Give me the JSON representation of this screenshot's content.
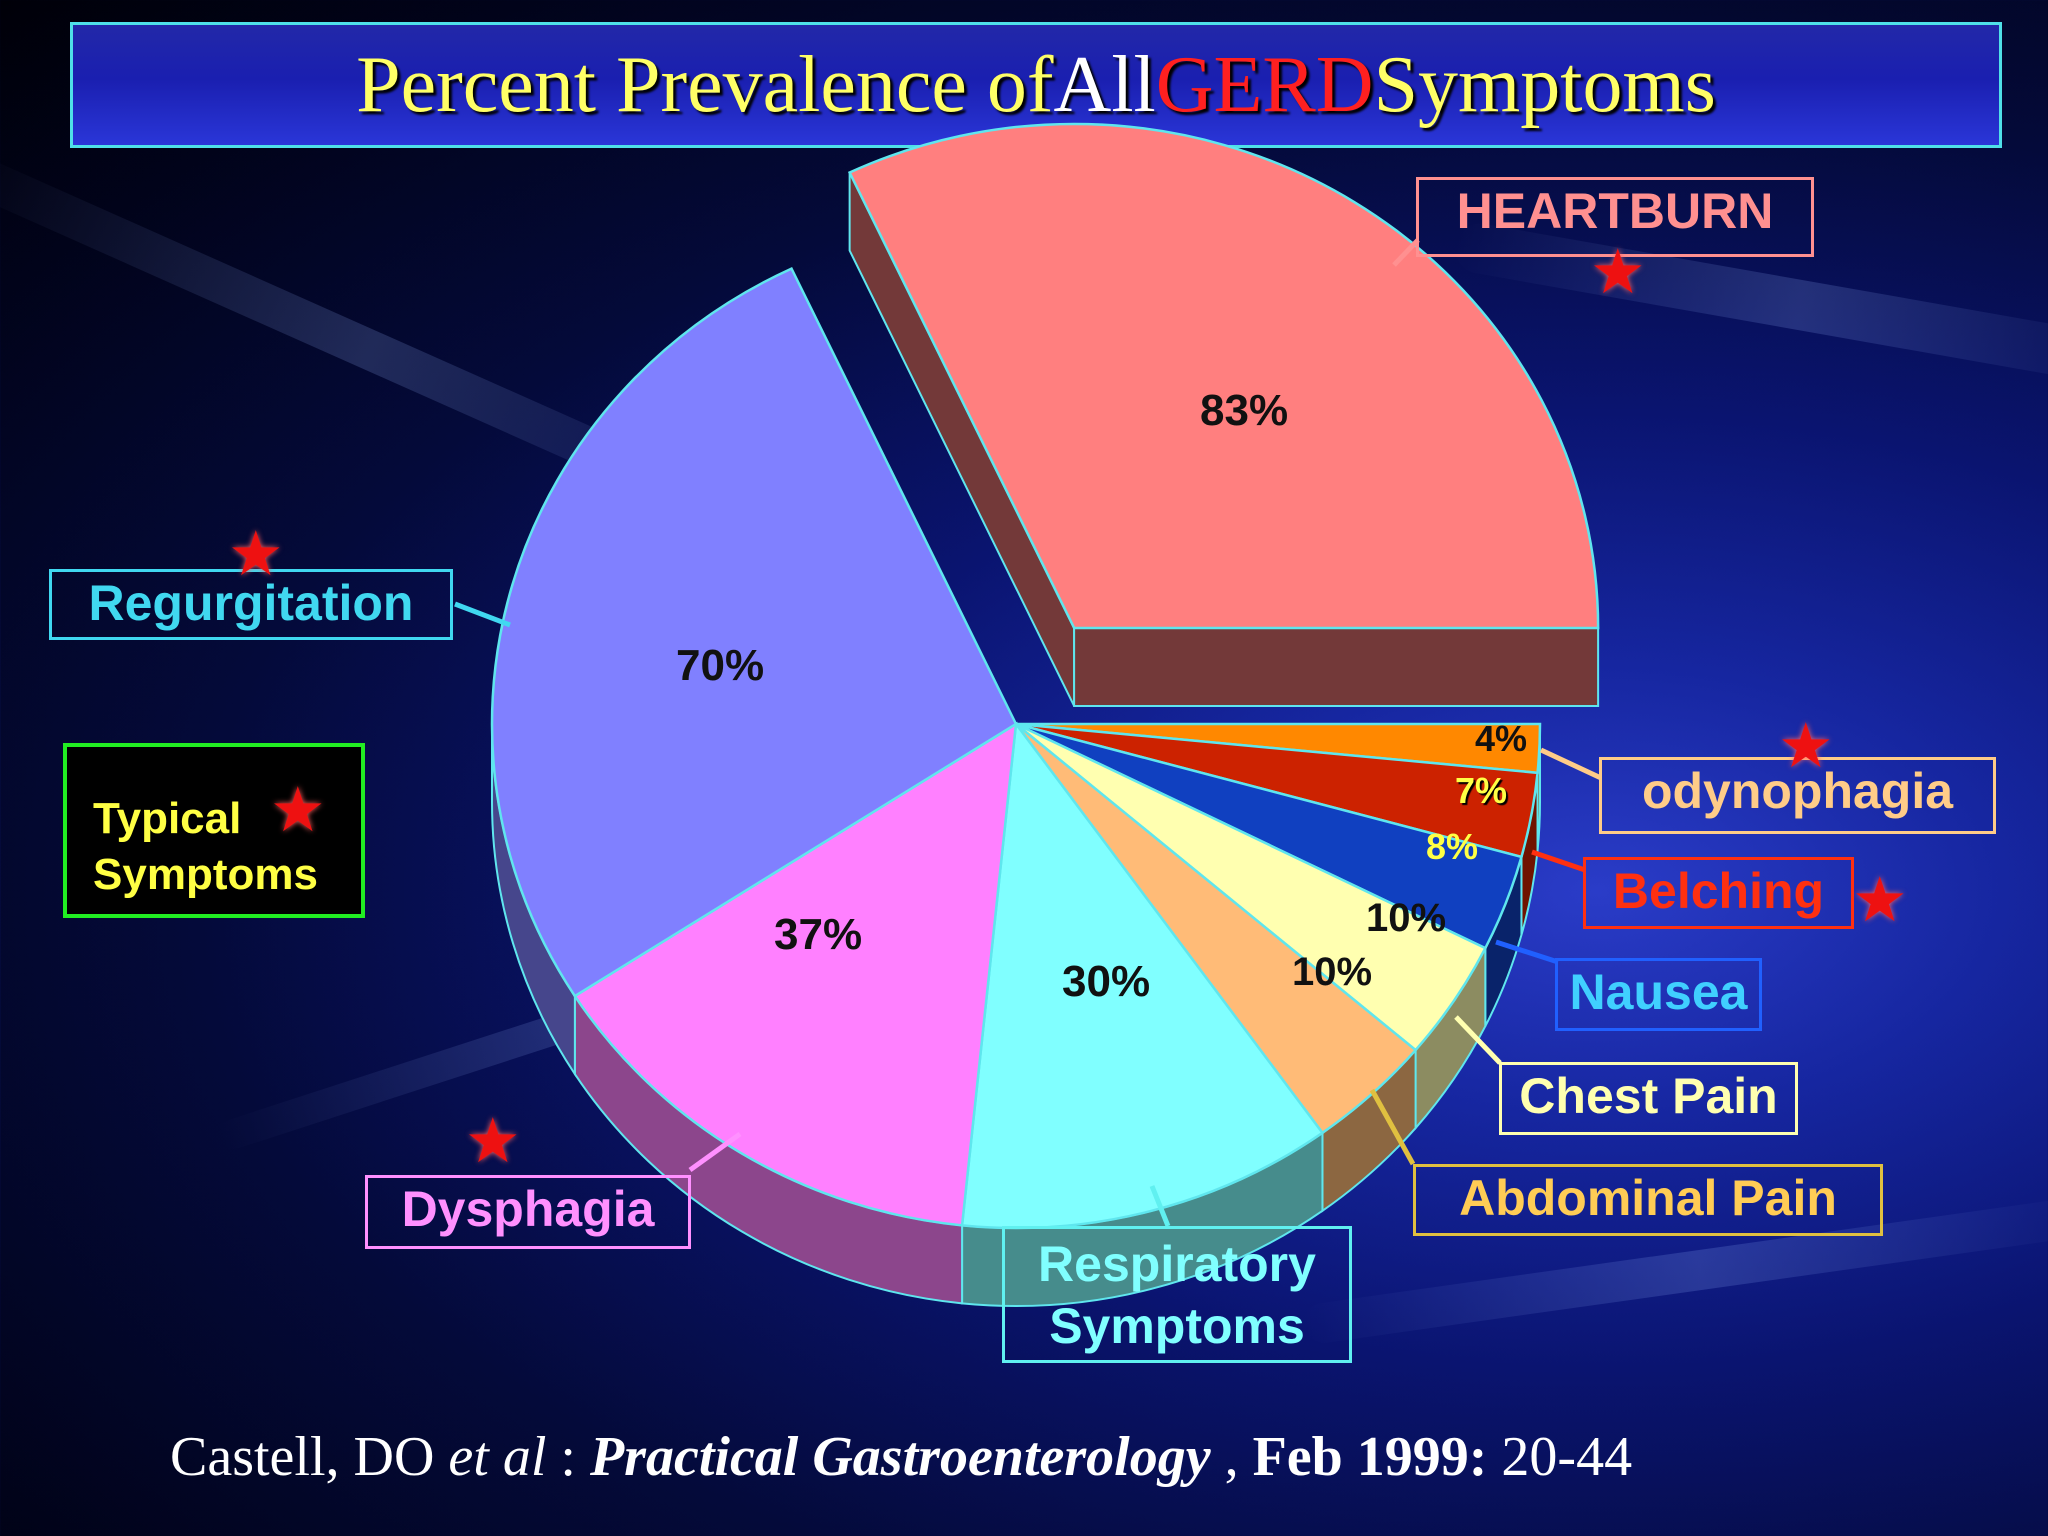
{
  "title": {
    "part1": "Percent Prevalence of ",
    "part2": "All ",
    "part3": "GERD",
    "part4": " Symptoms"
  },
  "chart_data": {
    "type": "pie",
    "title": "Percent Prevalence of All GERD Symptoms",
    "slices": [
      {
        "label": "HEARTBURN",
        "value": 83,
        "value_label": "83%",
        "color": "#ff7f7f",
        "exploded": true
      },
      {
        "label": "odynophagia",
        "value": 4,
        "value_label": "4%",
        "color": "#ff8800"
      },
      {
        "label": "Belching",
        "value": 7,
        "value_label": "7%",
        "color": "#cc2200"
      },
      {
        "label": "Nausea",
        "value": 8,
        "value_label": "8%",
        "color": "#1040c0"
      },
      {
        "label": "Chest Pain",
        "value": 10,
        "value_label": "10%",
        "color": "#ffffb0"
      },
      {
        "label": "Abdominal Pain",
        "value": 10,
        "value_label": "10%",
        "color": "#ffbb77"
      },
      {
        "label": "Respiratory Symptoms",
        "value": 30,
        "value_label": "30%",
        "color": "#80ffff"
      },
      {
        "label": "Dysphagia",
        "value": 37,
        "value_label": "37%",
        "color": "#ff80ff"
      },
      {
        "label": "Regurgitation",
        "value": 70,
        "value_label": "70%",
        "color": "#8080ff"
      }
    ],
    "typical_symptoms": [
      "HEARTBURN",
      "Regurgitation",
      "Dysphagia",
      "odynophagia",
      "Belching"
    ]
  },
  "labels": {
    "heartburn": "HEARTBURN",
    "regurgitation": "Regurgitation",
    "dysphagia": "Dysphagia",
    "respiratory_line1": "Respiratory",
    "respiratory_line2": "Symptoms",
    "odynophagia": "odynophagia",
    "belching": "Belching",
    "nausea": "Nausea",
    "chest_pain": "Chest Pain",
    "abdominal_pain": "Abdominal Pain"
  },
  "legend": {
    "line1": "Typical",
    "line2": "Symptoms",
    "marker": "★"
  },
  "citation": {
    "authors": "Castell, DO ",
    "etal": "et al",
    "colon": " : ",
    "journal": "Practical Gastroenterology",
    "comma": " , ",
    "date": "Feb 1999:",
    "pages": " 20-44"
  },
  "colors": {
    "background": "#0a1470",
    "title_yellow": "#ffff66",
    "title_red": "#ff2020",
    "star": "#ee1111"
  }
}
